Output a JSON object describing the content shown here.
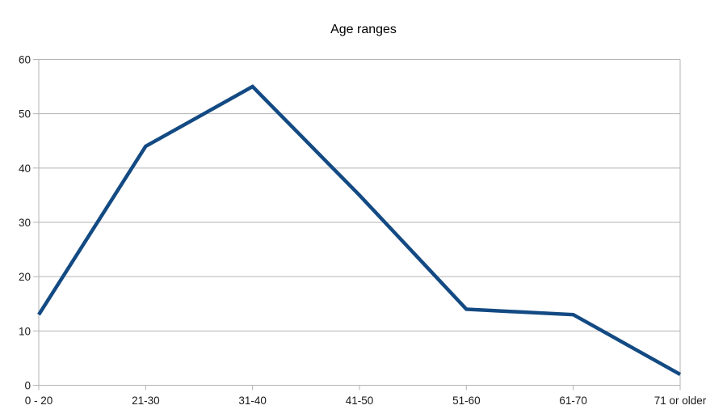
{
  "chart_data": {
    "type": "line",
    "title": "Age ranges",
    "categories": [
      "0 - 20",
      "21-30",
      "31-40",
      "41-50",
      "51-60",
      "61-70",
      "71 or older"
    ],
    "values": [
      13,
      44,
      55,
      35,
      14,
      13,
      2
    ],
    "xlabel": "",
    "ylabel": "",
    "ylim": [
      0,
      60
    ],
    "ytick_interval": 10,
    "yticks": [
      0,
      10,
      20,
      30,
      40,
      50,
      60
    ],
    "grid": "horizontal",
    "legend": "none",
    "line_color": "#134a83",
    "grid_color": "#b3b3b3",
    "axis_color": "#b3b3b3",
    "title_color": "#000000",
    "label_color": "#1a1a1a",
    "background_color": "#ffffff"
  }
}
